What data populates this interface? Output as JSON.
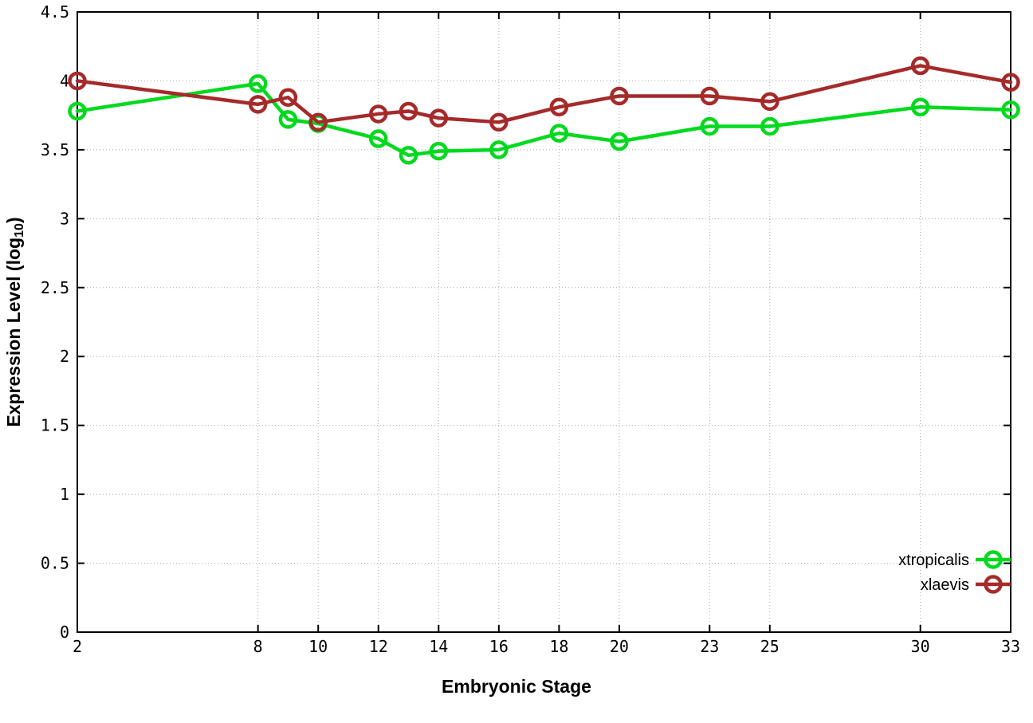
{
  "chart_data": {
    "type": "line",
    "title": "",
    "xlabel": "Embryonic Stage",
    "ylabel_prefix": "Expression Level (log",
    "ylabel_sub": "10",
    "ylabel_suffix": ")",
    "x": [
      2,
      8,
      9,
      10,
      12,
      13,
      14,
      16,
      18,
      20,
      23,
      25,
      30,
      33
    ],
    "series": [
      {
        "name": "xtropicalis",
        "color": "#00d91e",
        "values": [
          3.78,
          3.98,
          3.72,
          3.69,
          3.58,
          3.46,
          3.49,
          3.5,
          3.62,
          3.56,
          3.67,
          3.67,
          3.81,
          3.79
        ]
      },
      {
        "name": "xlaevis",
        "color": "#a52a2a",
        "values": [
          4.0,
          3.83,
          3.88,
          3.7,
          3.76,
          3.78,
          3.73,
          3.7,
          3.81,
          3.89,
          3.89,
          3.85,
          4.11,
          3.99
        ]
      }
    ],
    "xticks": [
      2,
      8,
      10,
      12,
      14,
      16,
      18,
      20,
      23,
      25,
      30,
      33
    ],
    "yticks": [
      "0",
      "0.5",
      "1",
      "1.5",
      "2",
      "2.5",
      "3",
      "3.5",
      "4",
      "4.5"
    ],
    "xlim": [
      2,
      33
    ],
    "ylim": [
      0,
      4.5
    ],
    "grid": true,
    "grid_color": "#a8a8a8",
    "axis_color": "#000000",
    "legend_position": "bottom-right",
    "marker": "open-circle"
  }
}
